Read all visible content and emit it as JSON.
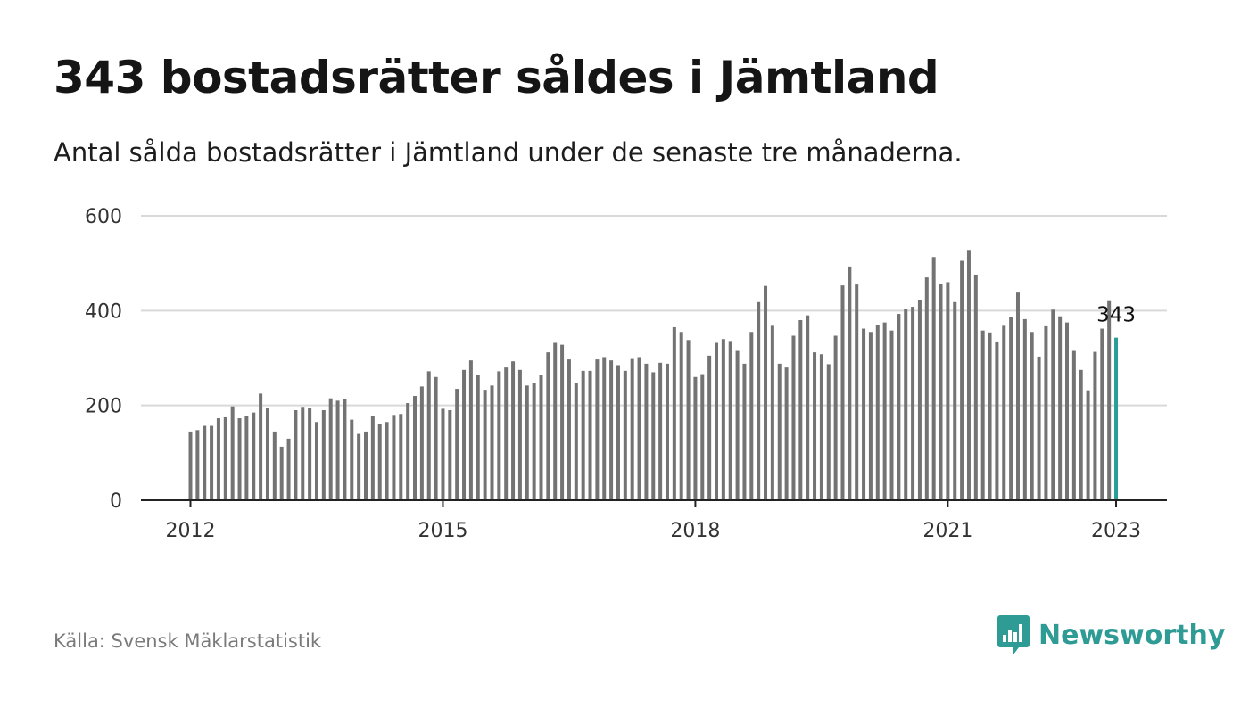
{
  "title": "343 bostadsrätter såldes i Jämtland",
  "subtitle": "Antal sålda bostadsrätter i Jämtland under de senaste tre månaderna.",
  "source": "Källa: Svensk Mäklarstatistik",
  "brand": {
    "name": "Newsworthy",
    "icon": "newsworthy-logo-icon",
    "color": "#2e9b95"
  },
  "colors": {
    "bar": "#737373",
    "highlight": "#2a9d96",
    "grid": "#d9d9d9",
    "axis": "#222222"
  },
  "chart_data": {
    "type": "bar",
    "x_start": "2012-01",
    "ylim": [
      0,
      600
    ],
    "yticks": [
      0,
      200,
      400,
      600
    ],
    "xticks": [
      "2012",
      "2015",
      "2018",
      "2021",
      "2023"
    ],
    "grid": true,
    "highlight_last": true,
    "annotation": "343",
    "values": [
      145,
      148,
      157,
      157,
      173,
      175,
      198,
      173,
      178,
      185,
      225,
      195,
      145,
      113,
      130,
      190,
      197,
      195,
      165,
      190,
      215,
      210,
      213,
      170,
      140,
      145,
      177,
      160,
      165,
      180,
      182,
      205,
      220,
      240,
      272,
      260,
      193,
      190,
      235,
      275,
      295,
      265,
      233,
      242,
      272,
      280,
      293,
      275,
      242,
      247,
      265,
      312,
      332,
      328,
      297,
      248,
      273,
      273,
      297,
      302,
      295,
      285,
      273,
      298,
      302,
      288,
      270,
      290,
      288,
      365,
      355,
      338,
      260,
      266,
      305,
      332,
      340,
      336,
      315,
      288,
      355,
      418,
      452,
      368,
      288,
      280,
      347,
      380,
      390,
      312,
      308,
      287,
      347,
      453,
      493,
      455,
      362,
      355,
      370,
      375,
      358,
      393,
      403,
      408,
      423,
      470,
      513,
      457,
      460,
      418,
      505,
      528,
      476,
      358,
      354,
      335,
      368,
      386,
      438,
      382,
      355,
      303,
      367,
      402,
      388,
      375,
      315,
      275,
      232,
      313,
      362,
      420,
      343
    ]
  }
}
